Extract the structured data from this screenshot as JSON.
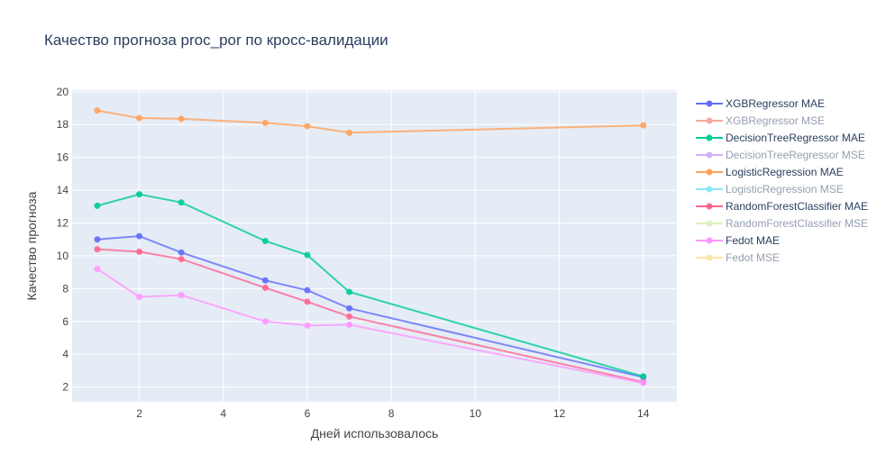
{
  "chart_data": {
    "type": "line",
    "title": "Качество прогноза proc_por по кросс-валидации",
    "xlabel": "Дней использовалось",
    "ylabel": "Качество прогноза",
    "xlim": [
      0.4,
      14.8
    ],
    "ylim": [
      1.1,
      20.1
    ],
    "xticks": [
      2,
      4,
      6,
      8,
      10,
      12,
      14
    ],
    "yticks": [
      2,
      4,
      6,
      8,
      10,
      12,
      14,
      16,
      18,
      20
    ],
    "grid": true,
    "legend_position": "right",
    "plot_bgcolor": "#e5ecf6",
    "series": [
      {
        "name": "XGBRegressor MAE",
        "color": "#636efa",
        "visible": true,
        "x": [
          1,
          2,
          3,
          5,
          6,
          7,
          14
        ],
        "y": [
          11.0,
          11.2,
          10.2,
          8.5,
          7.9,
          6.8,
          2.6
        ]
      },
      {
        "name": "XGBRegressor MSE",
        "color": "#ef553b",
        "visible": false,
        "x": [],
        "y": []
      },
      {
        "name": "DecisionTreeRegressor MAE",
        "color": "#00cc96",
        "visible": true,
        "x": [
          1,
          2,
          3,
          5,
          6,
          7,
          14
        ],
        "y": [
          13.05,
          13.75,
          13.25,
          10.9,
          10.05,
          7.8,
          2.65
        ]
      },
      {
        "name": "DecisionTreeRegressor MSE",
        "color": "#ab63fa",
        "visible": false,
        "x": [],
        "y": []
      },
      {
        "name": "LogisticRegression MAE",
        "color": "#ffa15a",
        "visible": true,
        "x": [
          1,
          2,
          3,
          5,
          6,
          7,
          14
        ],
        "y": [
          18.85,
          18.4,
          18.35,
          18.1,
          17.9,
          17.5,
          17.95
        ]
      },
      {
        "name": "LogisticRegression MSE",
        "color": "#19d3f3",
        "visible": false,
        "x": [],
        "y": []
      },
      {
        "name": "RandomForestClassifier MAE",
        "color": "#ff6692",
        "visible": true,
        "x": [
          1,
          2,
          3,
          5,
          6,
          7,
          14
        ],
        "y": [
          10.4,
          10.25,
          9.8,
          8.05,
          7.2,
          6.3,
          2.3
        ]
      },
      {
        "name": "RandomForestClassifier MSE",
        "color": "#b6e880",
        "visible": false,
        "x": [],
        "y": []
      },
      {
        "name": "Fedot MAE",
        "color": "#ff97ff",
        "visible": true,
        "x": [
          1,
          2,
          3,
          5,
          6,
          7,
          14
        ],
        "y": [
          9.2,
          7.5,
          7.6,
          6.0,
          5.75,
          5.8,
          2.25
        ]
      },
      {
        "name": "Fedot MSE",
        "color": "#fecb52",
        "visible": false,
        "x": [],
        "y": []
      }
    ]
  }
}
